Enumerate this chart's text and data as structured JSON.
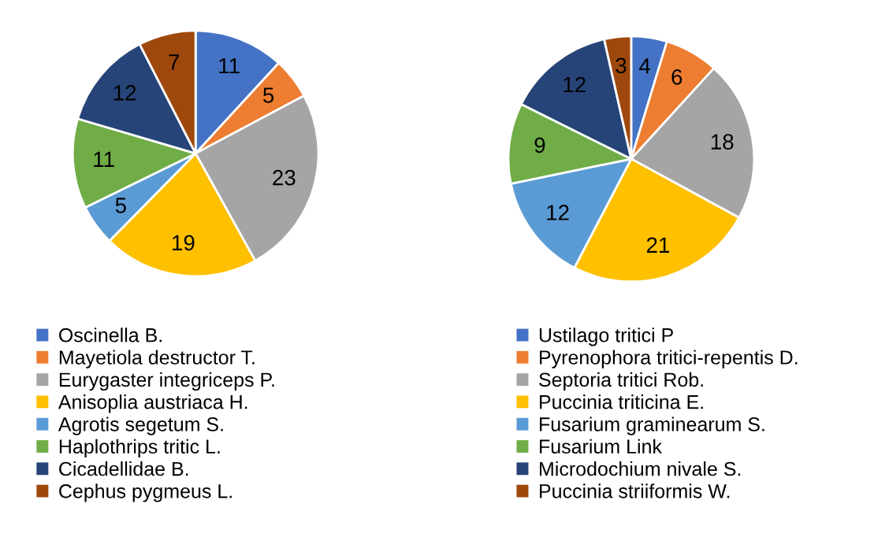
{
  "chart_data": [
    {
      "type": "pie",
      "categories": [
        "Oscinella B.",
        "Mayetiola destructor T.",
        "Eurygaster integriceps P.",
        "Anisoplia austriaca H.",
        "Agrotis segetum S.",
        "Haplothrips tritic L.",
        "Cicadellidae B.",
        "Cephus pygmeus L."
      ],
      "values": [
        11,
        5,
        23,
        19,
        5,
        11,
        12,
        7
      ],
      "colors": [
        "#4472c4",
        "#ed7d31",
        "#a5a5a5",
        "#ffc000",
        "#5b9bd5",
        "#70ad47",
        "#264478",
        "#9e480e"
      ],
      "data_labels": true,
      "legend": "bottom"
    },
    {
      "type": "pie",
      "categories": [
        "Ustilago tritici P",
        "Pyrenophora tritici-repentis D.",
        "Septoria tritici Rob.",
        "Puccinia triticina E.",
        "Fusarium graminearum S.",
        "Fusarium Link",
        "Microdochium nivale S.",
        "Puccinia striiformis W."
      ],
      "values": [
        4,
        6,
        18,
        21,
        12,
        9,
        12,
        3
      ],
      "colors": [
        "#4472c4",
        "#ed7d31",
        "#a5a5a5",
        "#ffc000",
        "#5b9bd5",
        "#70ad47",
        "#264478",
        "#9e480e"
      ],
      "data_labels": true,
      "legend": "bottom"
    }
  ]
}
